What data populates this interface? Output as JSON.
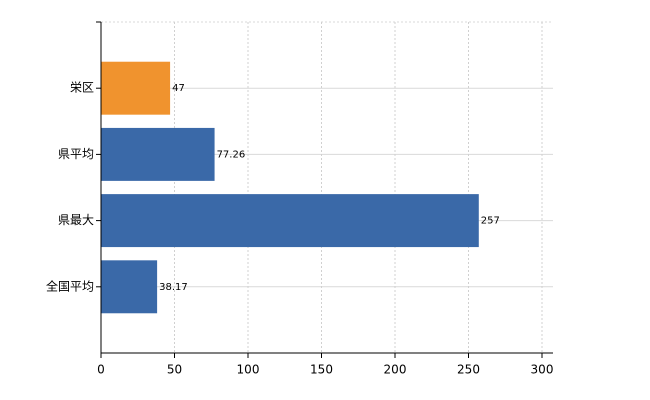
{
  "chart_data": {
    "type": "hbar",
    "categories": [
      "栄区",
      "県平均",
      "県最大",
      "全国平均"
    ],
    "values": [
      47,
      77.26,
      257,
      38.17
    ],
    "colors": [
      "#f0932e",
      "#3a69a8",
      "#3a69a8",
      "#3a69a8"
    ],
    "xlim": [
      0,
      300
    ],
    "xticks": [
      0,
      50,
      100,
      150,
      200,
      250,
      300
    ],
    "grid": true
  }
}
